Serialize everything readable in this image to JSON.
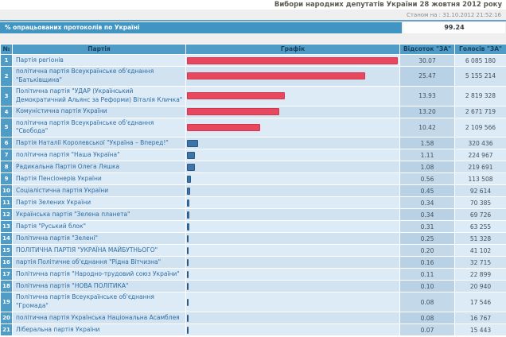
{
  "header": {
    "title": "Вибори народних депутатів України 28 жовтня 2012 року",
    "timestamp": "Станом на : 31.10.2012 21:52:16"
  },
  "progress": {
    "label": "% опрацьованих протоколів по Україні",
    "value": "99.24"
  },
  "table": {
    "columns": [
      "№",
      "Партія",
      "Графік",
      "Відсоток \"ЗА\"",
      "Голосів \"ЗА\""
    ],
    "max_percent": 30.07,
    "bar_colors": {
      "high": {
        "fill": "#e8485e",
        "border": "#cf3850"
      },
      "low": {
        "fill": "#3e74a6",
        "border": "#2b5a89"
      }
    },
    "rows": [
      {
        "n": "1",
        "party": "Партія регіонів",
        "percent": "30.07",
        "votes": "6 085 180",
        "bar": "high"
      },
      {
        "n": "2",
        "party": "політична партія Всеукраїнське об'єднання \"Батьківщина\"",
        "percent": "25.47",
        "votes": "5 155 214",
        "bar": "high"
      },
      {
        "n": "3",
        "party": "Політична партія \"УДАР (Український Демократичний Альянс за Реформи) Віталія Кличка\"",
        "percent": "13.93",
        "votes": "2 819 328",
        "bar": "high"
      },
      {
        "n": "4",
        "party": "Комуністична партія України",
        "percent": "13.20",
        "votes": "2 671 719",
        "bar": "high"
      },
      {
        "n": "5",
        "party": "політична партія Всеукраїнське об'єднання \"Свобода\"",
        "percent": "10.42",
        "votes": "2 109 566",
        "bar": "high"
      },
      {
        "n": "6",
        "party": "Партія Наталії Королевської \"Україна – Вперед!\"",
        "percent": "1.58",
        "votes": "320 436",
        "bar": "low"
      },
      {
        "n": "7",
        "party": "політична партія \"Наша Україна\"",
        "percent": "1.11",
        "votes": "224 967",
        "bar": "low"
      },
      {
        "n": "8",
        "party": "Радикальна Партія Олега Ляшка",
        "percent": "1.08",
        "votes": "219 691",
        "bar": "low"
      },
      {
        "n": "9",
        "party": "Партія Пенсіонерів України",
        "percent": "0.56",
        "votes": "113 508",
        "bar": "low"
      },
      {
        "n": "10",
        "party": "Соціалістична партія України",
        "percent": "0.45",
        "votes": "92 614",
        "bar": "low"
      },
      {
        "n": "11",
        "party": "Партія Зелених України",
        "percent": "0.34",
        "votes": "70 385",
        "bar": "low"
      },
      {
        "n": "12",
        "party": "Українська партія \"Зелена планета\"",
        "percent": "0.34",
        "votes": "69 726",
        "bar": "low"
      },
      {
        "n": "13",
        "party": "Партія \"Руський блок\"",
        "percent": "0.31",
        "votes": "63 255",
        "bar": "low"
      },
      {
        "n": "14",
        "party": "Політична партія \"Зелені\"",
        "percent": "0.25",
        "votes": "51 328",
        "bar": "low"
      },
      {
        "n": "15",
        "party": "ПОЛІТИЧНА ПАРТІЯ \"УКРАЇНА МАЙБУТНЬОГО\"",
        "percent": "0.20",
        "votes": "41 102",
        "bar": "low"
      },
      {
        "n": "16",
        "party": "партія Політичне об'єднання \"Рідна Вітчизна\"",
        "percent": "0.16",
        "votes": "32 715",
        "bar": "low"
      },
      {
        "n": "17",
        "party": "Політична партія \"Народно-трудовий союз України\"",
        "percent": "0.11",
        "votes": "22 899",
        "bar": "low"
      },
      {
        "n": "18",
        "party": "Політична партія \"НОВА ПОЛІТИКА\"",
        "percent": "0.10",
        "votes": "20 940",
        "bar": "low"
      },
      {
        "n": "19",
        "party": "Політична партія Всеукраїнське об'єднання \"Громада\"",
        "percent": "0.08",
        "votes": "17 546",
        "bar": "low"
      },
      {
        "n": "20",
        "party": "політична партія Українська Національна Асамблея",
        "percent": "0.08",
        "votes": "16 767",
        "bar": "low"
      },
      {
        "n": "21",
        "party": "Ліберальна партія України",
        "percent": "0.07",
        "votes": "15 443",
        "bar": "low"
      }
    ]
  }
}
